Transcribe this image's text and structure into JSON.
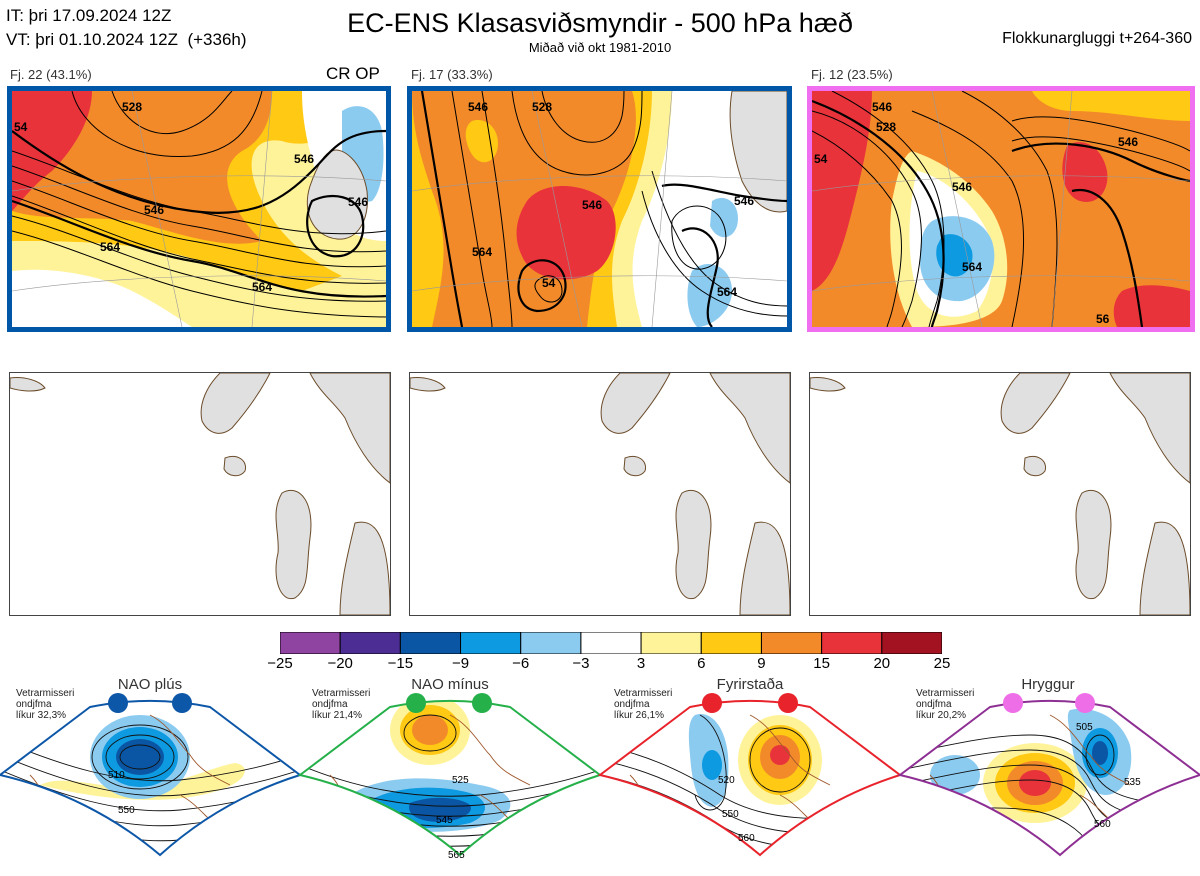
{
  "header": {
    "it_line": "IT: þri 17.09.2024 12Z",
    "vt_line": "VT: þri 01.10.2024 12Z  (+336h)",
    "title": "EC-ENS Klasasviðsmyndir - 500 hPa hæð",
    "subtitle": "Miðað við okt 1981-2010",
    "window": "Flokkunargluggi t+264-360"
  },
  "clusters": [
    {
      "label": "Fj. 22 (43.1%)",
      "tag": "CR OP",
      "border": "#0057a8",
      "contours": [
        "546",
        "564",
        "546",
        "564",
        "546",
        "528",
        "54"
      ]
    },
    {
      "label": "Fj. 17 (33.3%)",
      "tag": "",
      "border": "#0057a8",
      "contours": [
        "546",
        "564",
        "546",
        "528",
        "564",
        "546",
        "54"
      ]
    },
    {
      "label": "Fj. 12 (23.5%)",
      "tag": "",
      "border": "#f06ef0",
      "contours": [
        "546",
        "546",
        "564",
        "546",
        "528",
        "54",
        "56"
      ]
    }
  ],
  "colorbar": {
    "ticks": [
      "−25",
      "−20",
      "−15",
      "−9",
      "−6",
      "−3",
      "3",
      "6",
      "9",
      "15",
      "20",
      "25"
    ],
    "colors": [
      "#8e44a0",
      "#4b2d94",
      "#0a56a5",
      "#0d9ae0",
      "#8ccbf0",
      "#ffffff",
      "#fff39a",
      "#ffc914",
      "#f38a2a",
      "#e8333b",
      "#a31220"
    ]
  },
  "regimes": [
    {
      "name": "NAO plús",
      "note": [
        "Vetrarmisseri",
        "ondjfma",
        "líkur 32,3%"
      ],
      "dot_color": "#0d57a8",
      "frame_color": "#0d57a8",
      "contour_labels": [
        "510",
        "550"
      ]
    },
    {
      "name": "NAO mínus",
      "note": [
        "Vetrarmisseri",
        "ondjfma",
        "líkur 21,4%"
      ],
      "dot_color": "#25b04a",
      "frame_color": "#25b04a",
      "contour_labels": [
        "525",
        "545",
        "565"
      ]
    },
    {
      "name": "Fyrirstaða",
      "note": [
        "Vetrarmisseri",
        "ondjfma",
        "líkur 26,1%"
      ],
      "dot_color": "#e8232b",
      "frame_color": "#e8232b",
      "contour_labels": [
        "520",
        "550",
        "560"
      ]
    },
    {
      "name": "Hryggur",
      "note": [
        "Vetrarmisseri",
        "ondjfma",
        "líkur 20,2%"
      ],
      "dot_color": "#ee6ee8",
      "frame_color": "#8e2f93",
      "contour_labels": [
        "505",
        "535",
        "560"
      ]
    }
  ]
}
